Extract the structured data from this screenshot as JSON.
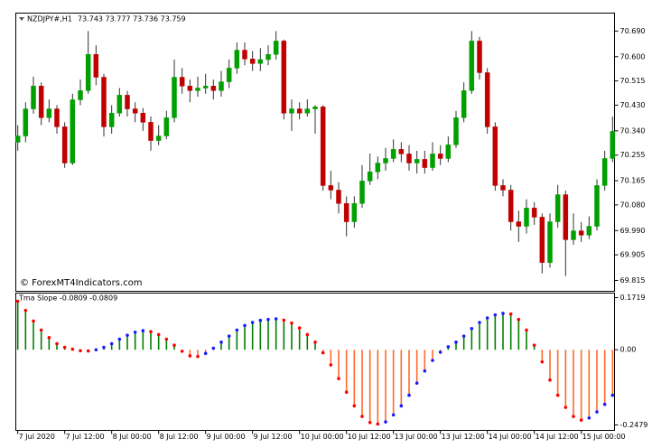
{
  "chart_data": [
    {
      "type": "candlestick",
      "title": "NZDJPY#,H1",
      "quote": "73.743 73.777 73.736 73.759",
      "watermark": "© ForexMT4Indicators.com",
      "up_color": "#00a000",
      "down_color": "#c00000",
      "wick_color": "#333333",
      "xlim": [
        -0.5,
        152.5
      ],
      "ylim": [
        69.777,
        70.753
      ],
      "yticks": [
        {
          "value": 70.69,
          "label": "70.690"
        },
        {
          "value": 70.6,
          "label": "70.600"
        },
        70.515,
        {
          "value": 70.43,
          "label": "70.430"
        },
        {
          "value": 70.34,
          "label": "70.340"
        },
        70.255,
        70.165,
        {
          "value": 70.08,
          "label": "70.080"
        },
        {
          "value": 69.99,
          "label": "69.990"
        },
        69.905,
        69.815
      ],
      "x": [
        0,
        2,
        4,
        6,
        8,
        10,
        12,
        14,
        16,
        18,
        20,
        22,
        24,
        26,
        28,
        30,
        32,
        34,
        36,
        38,
        40,
        42,
        44,
        46,
        48,
        50,
        52,
        54,
        56,
        58,
        60,
        62,
        64,
        66,
        68,
        70,
        72,
        74,
        76,
        78,
        80,
        82,
        84,
        86,
        88,
        90,
        92,
        94,
        96,
        98,
        100,
        102,
        104,
        106,
        108,
        110,
        112,
        114,
        116,
        118,
        120,
        122,
        124,
        126,
        128,
        130,
        132,
        134,
        136,
        138,
        140,
        142,
        144,
        146,
        148,
        150,
        152
      ],
      "open": [
        70.3,
        70.322,
        70.417,
        70.497,
        70.386,
        70.417,
        70.354,
        70.227,
        70.449,
        70.481,
        70.608,
        70.528,
        70.354,
        70.402,
        70.465,
        70.417,
        70.402,
        70.37,
        70.306,
        70.322,
        70.386,
        70.528,
        70.497,
        70.481,
        70.49,
        70.497,
        70.481,
        70.512,
        70.56,
        70.623,
        70.592,
        70.576,
        70.59,
        70.608,
        70.655,
        70.402,
        70.417,
        70.402,
        70.417,
        70.424,
        70.148,
        70.132,
        70.085,
        70.021,
        70.085,
        70.164,
        70.196,
        70.227,
        70.243,
        70.275,
        70.259,
        70.227,
        70.24,
        70.211,
        70.259,
        70.243,
        70.291,
        70.386,
        70.481,
        70.655,
        70.544,
        70.354,
        70.148,
        70.132,
        70.021,
        70.005,
        70.069,
        70.037,
        69.878,
        70.021,
        70.116,
        69.958,
        69.989,
        69.974,
        70.005,
        70.148,
        70.243
      ],
      "high": [
        70.36,
        70.44,
        70.53,
        70.51,
        70.45,
        70.43,
        70.37,
        70.47,
        70.52,
        70.69,
        70.64,
        70.54,
        70.43,
        70.49,
        70.48,
        70.44,
        70.42,
        70.39,
        70.36,
        70.41,
        70.59,
        70.56,
        70.52,
        70.53,
        70.54,
        70.52,
        70.55,
        70.59,
        70.65,
        70.65,
        70.62,
        70.63,
        70.64,
        70.69,
        70.66,
        70.45,
        70.44,
        70.45,
        70.43,
        70.43,
        70.2,
        70.16,
        70.11,
        70.11,
        70.22,
        70.26,
        70.25,
        70.28,
        70.31,
        70.3,
        70.29,
        70.27,
        70.27,
        70.3,
        70.29,
        70.32,
        70.41,
        70.51,
        70.69,
        70.67,
        70.56,
        70.37,
        70.17,
        70.15,
        70.06,
        70.1,
        70.09,
        70.05,
        70.05,
        70.15,
        70.13,
        70.05,
        70.02,
        70.04,
        70.17,
        70.27,
        70.39
      ],
      "low": [
        70.27,
        70.3,
        70.4,
        70.36,
        70.37,
        70.33,
        70.21,
        70.22,
        70.43,
        70.47,
        70.5,
        70.32,
        70.33,
        70.39,
        70.39,
        70.37,
        70.34,
        70.27,
        70.29,
        70.31,
        70.37,
        70.47,
        70.44,
        70.46,
        70.47,
        70.45,
        70.46,
        70.49,
        70.54,
        70.57,
        70.55,
        70.55,
        70.57,
        70.59,
        70.38,
        70.34,
        70.38,
        70.39,
        70.33,
        70.13,
        70.1,
        70.05,
        69.97,
        70.0,
        70.07,
        70.15,
        70.17,
        70.2,
        70.23,
        70.23,
        70.2,
        70.19,
        70.19,
        70.2,
        70.22,
        70.23,
        70.28,
        70.37,
        70.47,
        70.52,
        70.33,
        70.13,
        70.11,
        69.99,
        69.95,
        69.98,
        70.01,
        69.84,
        69.86,
        70.0,
        69.83,
        69.94,
        69.95,
        69.96,
        69.99,
        70.13,
        70.23
      ],
      "close": [
        70.322,
        70.417,
        70.497,
        70.386,
        70.417,
        70.354,
        70.227,
        70.449,
        70.481,
        70.608,
        70.528,
        70.354,
        70.402,
        70.465,
        70.417,
        70.402,
        70.37,
        70.306,
        70.322,
        70.386,
        70.528,
        70.497,
        70.481,
        70.49,
        70.497,
        70.481,
        70.512,
        70.56,
        70.623,
        70.592,
        70.576,
        70.59,
        70.608,
        70.655,
        70.402,
        70.417,
        70.402,
        70.417,
        70.424,
        70.148,
        70.132,
        70.085,
        70.021,
        70.085,
        70.164,
        70.196,
        70.227,
        70.243,
        70.275,
        70.259,
        70.227,
        70.24,
        70.211,
        70.259,
        70.243,
        70.291,
        70.386,
        70.481,
        70.655,
        70.544,
        70.354,
        70.148,
        70.132,
        70.021,
        70.005,
        70.069,
        70.037,
        69.878,
        70.021,
        70.116,
        69.958,
        69.989,
        69.974,
        70.005,
        70.148,
        70.243,
        70.338
      ]
    },
    {
      "type": "histogram",
      "title": "Tma Slope -0.0809 -0.0809",
      "positive_color": "#008000",
      "negative_color": "#ff6a2a",
      "rising_color": "#1a1aff",
      "falling_color": "#ff0000",
      "xlim": [
        -0.5,
        152.5
      ],
      "ylim": [
        -0.266,
        0.187
      ],
      "yticks": [
        0.1719,
        {
          "value": 0,
          "label": "0.00"
        },
        -0.2479
      ],
      "xticks": [
        {
          "value": 0,
          "label": "7 Jul 2020"
        },
        {
          "value": 12,
          "label": "7 Jul 12:00"
        },
        {
          "value": 24,
          "label": "8 Jul 00:00"
        },
        {
          "value": 36,
          "label": "8 Jul 12:00"
        },
        {
          "value": 48,
          "label": "9 Jul 00:00"
        },
        {
          "value": 60,
          "label": "9 Jul 12:00"
        },
        {
          "value": 72,
          "label": "10 Jul 00:00"
        },
        {
          "value": 84,
          "label": "10 Jul 12:00"
        },
        {
          "value": 96,
          "label": "13 Jul 00:00"
        },
        {
          "value": 108,
          "label": "13 Jul 12:00"
        },
        {
          "value": 120,
          "label": "14 Jul 00:00"
        },
        {
          "value": 132,
          "label": "14 Jul 12:00"
        },
        {
          "value": 144,
          "label": "15 Jul 00:00"
        }
      ],
      "x": [
        0,
        2,
        4,
        6,
        8,
        10,
        12,
        14,
        16,
        18,
        20,
        22,
        24,
        26,
        28,
        30,
        32,
        34,
        36,
        38,
        40,
        42,
        44,
        46,
        48,
        50,
        52,
        54,
        56,
        58,
        60,
        62,
        64,
        66,
        68,
        70,
        72,
        74,
        76,
        78,
        80,
        82,
        84,
        86,
        88,
        90,
        92,
        94,
        96,
        98,
        100,
        102,
        104,
        106,
        108,
        110,
        112,
        114,
        116,
        118,
        120,
        122,
        124,
        126,
        128,
        130,
        132,
        134,
        136,
        138,
        140,
        142,
        144,
        146,
        148,
        150,
        152
      ],
      "values": [
        0.16,
        0.13,
        0.095,
        0.065,
        0.04,
        0.02,
        0.008,
        0.002,
        -0.003,
        -0.004,
        0.0,
        0.008,
        0.02,
        0.035,
        0.048,
        0.058,
        0.063,
        0.06,
        0.05,
        0.035,
        0.015,
        -0.005,
        -0.02,
        -0.022,
        -0.012,
        0.005,
        0.025,
        0.045,
        0.065,
        0.08,
        0.09,
        0.097,
        0.1,
        0.102,
        0.098,
        0.088,
        0.072,
        0.05,
        0.025,
        -0.01,
        -0.05,
        -0.095,
        -0.14,
        -0.185,
        -0.22,
        -0.24,
        -0.245,
        -0.238,
        -0.215,
        -0.185,
        -0.15,
        -0.11,
        -0.07,
        -0.035,
        -0.008,
        0.01,
        0.025,
        0.045,
        0.07,
        0.09,
        0.105,
        0.115,
        0.12,
        0.118,
        0.1,
        0.065,
        0.015,
        -0.04,
        -0.1,
        -0.15,
        -0.19,
        -0.22,
        -0.232,
        -0.225,
        -0.205,
        -0.18,
        -0.15
      ]
    }
  ]
}
